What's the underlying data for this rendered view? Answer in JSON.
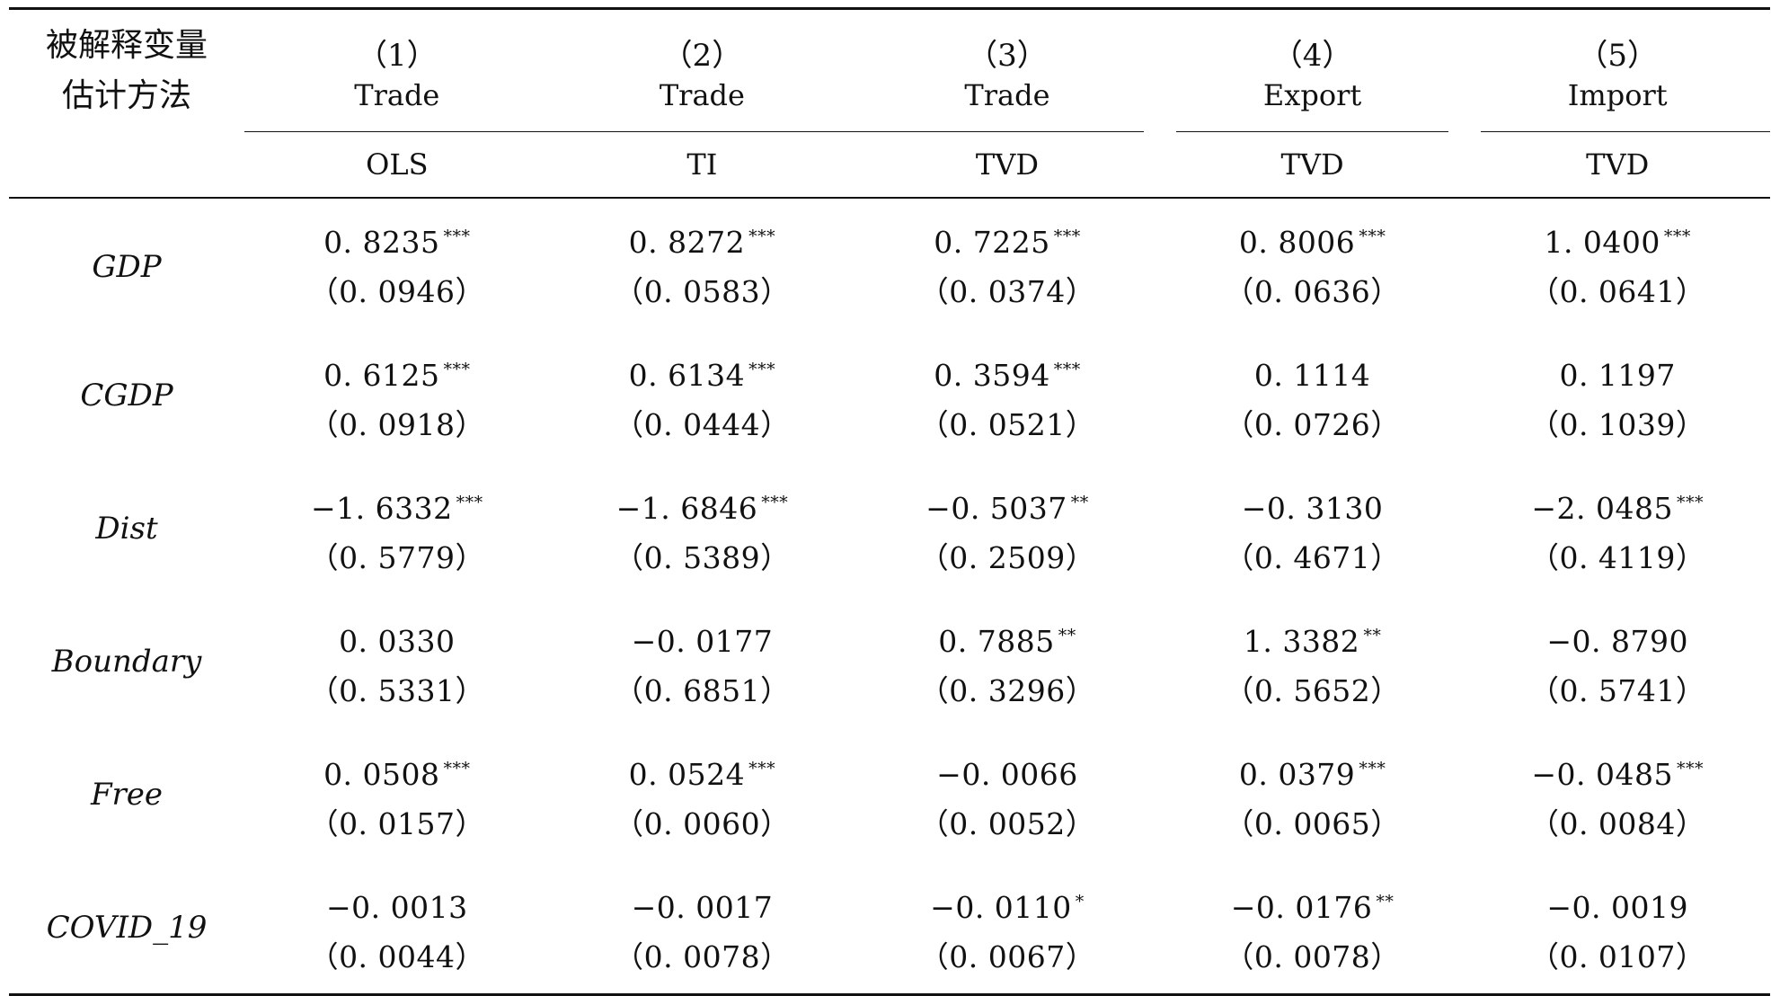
{
  "header": {
    "dependent_label": "被解释变量",
    "method_label": "估计方法",
    "columns": [
      {
        "num": "（1）",
        "dependent": "Trade",
        "method": "OLS"
      },
      {
        "num": "（2）",
        "dependent": "Trade",
        "method": "TI"
      },
      {
        "num": "（3）",
        "dependent": "Trade",
        "method": "TVD"
      },
      {
        "num": "（4）",
        "dependent": "Export",
        "method": "TVD"
      },
      {
        "num": "（5）",
        "dependent": "Import",
        "method": "TVD"
      }
    ]
  },
  "rows": [
    {
      "name": "GDP",
      "coef": [
        "0. 8235",
        "0. 8272",
        "0. 7225",
        "0. 8006",
        "1. 0400"
      ],
      "stars": [
        "***",
        "***",
        "***",
        "***",
        "***"
      ],
      "se": [
        "（0. 0946）",
        "（0. 0583）",
        "（0. 0374）",
        "（0. 0636）",
        "（0. 0641）"
      ]
    },
    {
      "name": "CGDP",
      "coef": [
        "0. 6125",
        "0. 6134",
        "0. 3594",
        "0. 1114",
        "0. 1197"
      ],
      "stars": [
        "***",
        "***",
        "***",
        "",
        ""
      ],
      "se": [
        "（0. 0918）",
        "（0. 0444）",
        "（0. 0521）",
        "（0. 0726）",
        "（0. 1039）"
      ]
    },
    {
      "name": "Dist",
      "coef": [
        "−1. 6332",
        "−1. 6846",
        "−0. 5037",
        "−0. 3130",
        "−2. 0485"
      ],
      "stars": [
        "***",
        "***",
        "**",
        "",
        "***"
      ],
      "se": [
        "（0. 5779）",
        "（0. 5389）",
        "（0. 2509）",
        "（0. 4671）",
        "（0. 4119）"
      ]
    },
    {
      "name": "Boundary",
      "coef": [
        "0. 0330",
        "−0. 0177",
        "0. 7885",
        "1. 3382",
        "−0. 8790"
      ],
      "stars": [
        "",
        "",
        "**",
        "**",
        ""
      ],
      "se": [
        "（0. 5331）",
        "（0. 6851）",
        "（0. 3296）",
        "（0. 5652）",
        "（0. 5741）"
      ]
    },
    {
      "name": "Free",
      "coef": [
        "0. 0508",
        "0. 0524",
        "−0. 0066",
        "0. 0379",
        "−0. 0485"
      ],
      "stars": [
        "***",
        "***",
        "",
        "***",
        "***"
      ],
      "se": [
        "（0. 0157）",
        "（0. 0060）",
        "（0. 0052）",
        "（0. 0065）",
        "（0. 0084）"
      ]
    },
    {
      "name": "COVID_19",
      "coef": [
        "−0. 0013",
        "−0. 0017",
        "−0. 0110",
        "−0. 0176",
        "−0. 0019"
      ],
      "stars": [
        "",
        "",
        "*",
        "**",
        ""
      ],
      "se": [
        "（0. 0044）",
        "（0. 0078）",
        "（0. 0067）",
        "（0. 0078）",
        "（0. 0107）"
      ]
    }
  ]
}
